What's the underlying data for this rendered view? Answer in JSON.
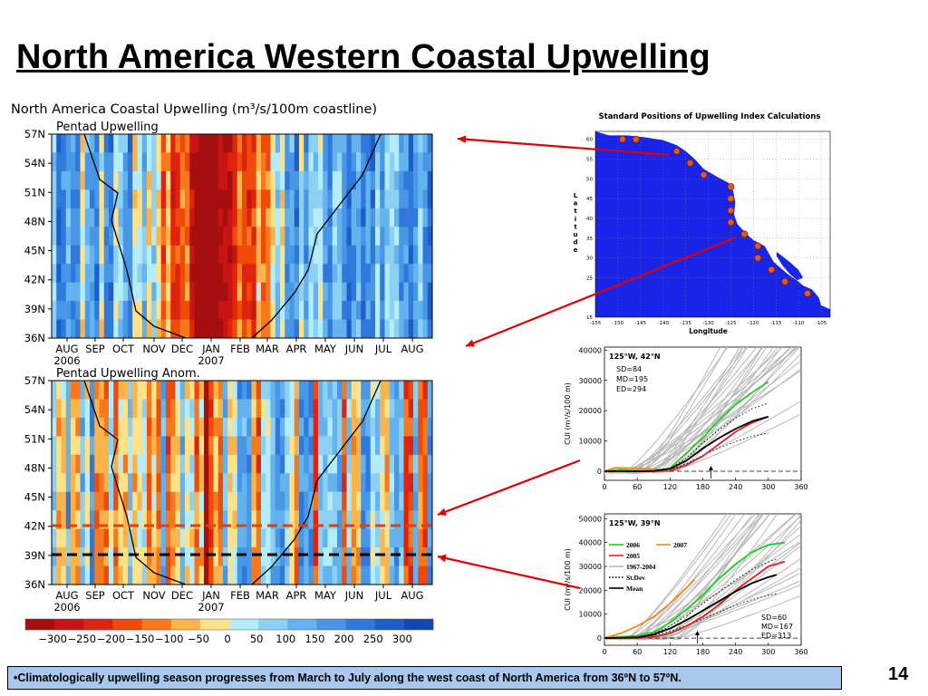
{
  "slide": {
    "title": "North America Western Coastal Upwelling",
    "bullet": "•Climatologically upwelling season progresses from March to July along the west coast of North America from 36ºN to 57ºN.",
    "page_number": "14"
  },
  "chart_data": [
    {
      "type": "heatmap",
      "title": "North America Coastal Upwelling (m³/s/100m coastline)",
      "subtitle": "Pentad Upwelling",
      "y_ticks": [
        "57N",
        "54N",
        "51N",
        "48N",
        "45N",
        "42N",
        "39N",
        "36N"
      ],
      "x_ticks": [
        "AUG",
        "SEP",
        "OCT",
        "NOV",
        "DEC",
        "JAN",
        "FEB",
        "MAR",
        "APR",
        "MAY",
        "JUN",
        "JUL",
        "AUG"
      ],
      "x_year_labels": [
        "2006",
        "2007"
      ]
    },
    {
      "type": "heatmap",
      "subtitle": "Pentad Upwelling Anom.",
      "y_ticks": [
        "57N",
        "54N",
        "51N",
        "48N",
        "45N",
        "42N",
        "39N",
        "36N"
      ],
      "x_ticks": [
        "AUG",
        "SEP",
        "OCT",
        "NOV",
        "DEC",
        "JAN",
        "FEB",
        "MAR",
        "APR",
        "MAY",
        "JUN",
        "JUL",
        "AUG"
      ],
      "x_year_labels": [
        "2006",
        "2007"
      ],
      "colorbar": {
        "labels": [
          "−300",
          "−250",
          "−200",
          "−150",
          "−100",
          "−50",
          "0",
          "50",
          "100",
          "150",
          "200",
          "250",
          "300"
        ],
        "colors": [
          "#a50f0f",
          "#c81414",
          "#e0230f",
          "#f04a0a",
          "#f7791e",
          "#fbb44a",
          "#fde28a",
          "#b4ecf7",
          "#8cd0f4",
          "#64b2ee",
          "#4896e6",
          "#2f78dc",
          "#1c5fcc",
          "#1048b4"
        ]
      }
    },
    {
      "type": "scatter",
      "title": "Standard Positions of Upwelling Index Calculations",
      "xlabel": "Longitude",
      "ylabel": "Latitude",
      "x_ticks": [
        "-155",
        "-150",
        "-145",
        "-140",
        "-135",
        "-130",
        "-125",
        "-120",
        "-115",
        "-110",
        "-105"
      ],
      "y_ticks": [
        "60",
        "55",
        "50",
        "45",
        "40",
        "35",
        "30",
        "25",
        "15"
      ],
      "points": [
        {
          "lon": -149,
          "lat": 60
        },
        {
          "lon": -146,
          "lat": 60
        },
        {
          "lon": -137,
          "lat": 57
        },
        {
          "lon": -134,
          "lat": 54
        },
        {
          "lon": -131,
          "lat": 51
        },
        {
          "lon": -125,
          "lat": 48
        },
        {
          "lon": -125,
          "lat": 45
        },
        {
          "lon": -125,
          "lat": 42
        },
        {
          "lon": -125,
          "lat": 39
        },
        {
          "lon": -122,
          "lat": 36
        },
        {
          "lon": -119,
          "lat": 33
        },
        {
          "lon": -119,
          "lat": 30
        },
        {
          "lon": -116,
          "lat": 27
        },
        {
          "lon": -113,
          "lat": 24
        },
        {
          "lon": -108,
          "lat": 21
        }
      ]
    },
    {
      "type": "line",
      "annotation": "125°W, 42°N",
      "stats": [
        "SD=84",
        "MD=195",
        "ED=294"
      ],
      "ylabel": "CUI (m³/s/100 m)",
      "x_ticks": [
        "0",
        "60",
        "120",
        "180",
        "240",
        "300",
        "360"
      ],
      "y_ticks": [
        "0",
        "10000",
        "20000",
        "30000",
        "40000"
      ],
      "xlim": [
        0,
        360
      ],
      "ylim": [
        -3000,
        41000
      ],
      "series": [
        {
          "name": "2006",
          "color": "#22cc22",
          "x": [
            0,
            30,
            60,
            90,
            120,
            150,
            180,
            210,
            240,
            270,
            300
          ],
          "values": [
            0,
            500,
            0,
            0,
            1000,
            6000,
            11000,
            17000,
            22000,
            26000,
            29500
          ]
        },
        {
          "name": "2005",
          "color": "#dd2222",
          "x": [
            0,
            60,
            90,
            120,
            150,
            180,
            210,
            240,
            270,
            300
          ],
          "values": [
            0,
            0,
            0,
            200,
            2000,
            5000,
            9000,
            13000,
            16000,
            18000
          ]
        },
        {
          "name": "2007",
          "color": "#ee8822",
          "x": [
            0,
            20,
            50,
            80,
            100,
            120
          ],
          "values": [
            0,
            1200,
            1000,
            800,
            600,
            400
          ]
        },
        {
          "name": "Mean",
          "color": "#000000",
          "x": [
            0,
            60,
            90,
            120,
            150,
            180,
            210,
            240,
            270,
            300
          ],
          "values": [
            0,
            0,
            100,
            800,
            3500,
            7500,
            11000,
            14000,
            16500,
            18000
          ]
        }
      ]
    },
    {
      "type": "line",
      "annotation": "125°W, 39°N",
      "stats": [
        "SD=60",
        "MD=167",
        "ED=313"
      ],
      "ylabel": "CUI (m³/s/100 m)",
      "x_ticks": [
        "0",
        "60",
        "120",
        "180",
        "240",
        "300",
        "360"
      ],
      "y_ticks": [
        "0",
        "10000",
        "20000",
        "30000",
        "40000",
        "50000"
      ],
      "xlim": [
        0,
        360
      ],
      "ylim": [
        -3000,
        52000
      ],
      "legend": [
        "2006",
        "2007",
        "2005",
        "1967-2004",
        "St.Dev",
        "Mean"
      ],
      "series": [
        {
          "name": "2006",
          "color": "#22cc22",
          "x": [
            0,
            30,
            60,
            90,
            120,
            150,
            180,
            210,
            240,
            270,
            300,
            330
          ],
          "values": [
            0,
            500,
            1000,
            2500,
            6500,
            12000,
            18000,
            25000,
            31000,
            36000,
            39000,
            40000
          ]
        },
        {
          "name": "2007",
          "color": "#ee8822",
          "x": [
            0,
            30,
            60,
            90,
            120,
            150,
            165
          ],
          "values": [
            0,
            2000,
            5000,
            9000,
            14500,
            21000,
            24500
          ]
        },
        {
          "name": "2005",
          "color": "#dd2222",
          "x": [
            0,
            60,
            90,
            120,
            150,
            180,
            210,
            240,
            270,
            300,
            330
          ],
          "values": [
            0,
            0,
            500,
            2000,
            5000,
            9000,
            14000,
            20000,
            25000,
            30000,
            32000
          ]
        },
        {
          "name": "Mean",
          "color": "#000000",
          "x": [
            0,
            60,
            90,
            120,
            150,
            180,
            210,
            240,
            270,
            300,
            315
          ],
          "values": [
            0,
            300,
            1500,
            4000,
            7500,
            11500,
            15500,
            19500,
            23000,
            25500,
            26500
          ]
        }
      ]
    }
  ]
}
